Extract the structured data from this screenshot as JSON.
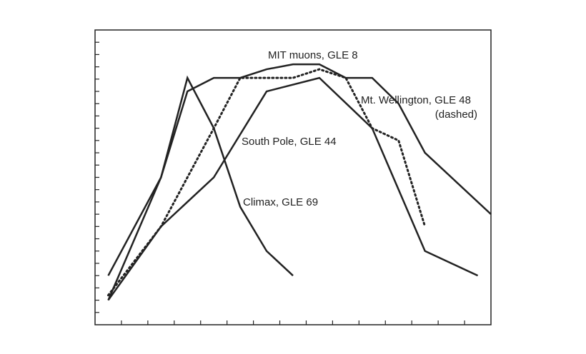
{
  "chart_data": {
    "type": "line",
    "xlim": [
      0,
      15
    ],
    "ylim": [
      0,
      24
    ],
    "xticks": [
      1,
      2,
      3,
      4,
      5,
      6,
      7,
      8,
      9,
      10,
      11,
      12,
      13,
      14
    ],
    "yticks": [
      1,
      2,
      3,
      4,
      5,
      6,
      7,
      8,
      9,
      10,
      11,
      12,
      13,
      14,
      15,
      16,
      17,
      18,
      19,
      20,
      21,
      22,
      23
    ],
    "series": [
      {
        "color": "#222222",
        "dashed": false,
        "x": [
          0.5,
          2.5,
          3.5,
          4.5,
          5.5,
          6.5,
          7.5,
          8.5,
          9.5,
          10.5,
          11.5,
          12.5,
          15
        ],
        "values": [
          2.0,
          12.0,
          19.0,
          20.1,
          20.1,
          20.8,
          21.2,
          21.2,
          20.1,
          20.1,
          18.0,
          14.0,
          9.0
        ]
      },
      {
        "color": "#222222",
        "dashed": true,
        "x": [
          0.5,
          2.5,
          4.5,
          5.5,
          7.5,
          8.5,
          9.5,
          10.5,
          11.5,
          12.5
        ],
        "values": [
          2.4,
          8.0,
          16.0,
          20.1,
          20.1,
          20.8,
          20.1,
          16.0,
          15.0,
          8.0
        ]
      },
      {
        "color": "#222222",
        "dashed": false,
        "x": [
          0.5,
          2.5,
          4.5,
          6.5,
          8.5,
          10.5,
          12.5,
          14.5
        ],
        "values": [
          2.0,
          8.0,
          12.0,
          19.0,
          20.1,
          16.0,
          6.0,
          4.0
        ]
      },
      {
        "color": "#222222",
        "dashed": false,
        "x": [
          0.5,
          2.5,
          3.5,
          4.5,
          5.5,
          6.5,
          7.5
        ],
        "values": [
          4.0,
          12.0,
          20.1,
          16.0,
          9.6,
          6.0,
          4.0
        ]
      }
    ],
    "annotations": [
      "MIT muons, GLE 8",
      "Mt. Wellington, GLE 48",
      "(dashed)",
      "South Pole, GLE 44",
      "Climax, GLE 69"
    ]
  }
}
